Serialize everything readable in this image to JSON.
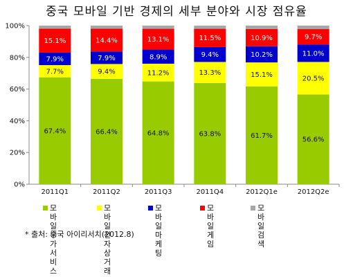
{
  "chart_data": {
    "type": "bar",
    "stacked": true,
    "title": "중국 모바일 기반 경제의 세부 분야와 시장 점유율",
    "categories": [
      "2011Q1",
      "2011Q2",
      "2011Q3",
      "2011Q4",
      "2012Q1e",
      "2012Q2e"
    ],
    "series": [
      {
        "name": "모바일 부가서비스",
        "color": "#99cc00",
        "values": [
          67.4,
          66.4,
          64.8,
          63.8,
          61.7,
          56.6
        ],
        "labels": [
          "67.4%",
          "66.4%",
          "64.8%",
          "63.8%",
          "61.7%",
          "56.6%"
        ]
      },
      {
        "name": "모바일 전자상거래",
        "color": "#ffff00",
        "values": [
          7.7,
          9.4,
          11.2,
          13.3,
          15.1,
          20.5
        ],
        "labels": [
          "7.7%",
          "9.4%",
          "11.2%",
          "13.3%",
          "15.1%",
          "20.5%"
        ]
      },
      {
        "name": "모바일 마케팅",
        "color": "#0000cc",
        "values": [
          7.9,
          7.9,
          8.9,
          9.4,
          10.2,
          11.0
        ],
        "labels": [
          "7.9%",
          "7.9%",
          "8.9%",
          "9.4%",
          "10.2%",
          "11.0%"
        ]
      },
      {
        "name": "모바일 게임",
        "color": "#ff0000",
        "values": [
          15.1,
          14.4,
          13.1,
          11.5,
          10.9,
          9.7
        ],
        "labels": [
          "15.1%",
          "14.4%",
          "13.1%",
          "11.5%",
          "10.9%",
          "9.7%"
        ]
      },
      {
        "name": "모바일 검색",
        "color": "#a6a6a6",
        "values": [
          1.9,
          1.9,
          2.0,
          2.0,
          2.1,
          2.2
        ],
        "labels": []
      }
    ],
    "ylim": [
      0,
      100
    ],
    "yticks": [
      "0%",
      "20%",
      "40%",
      "60%",
      "80%",
      "100%"
    ],
    "grid": false,
    "legend_position": "bottom"
  },
  "legend_items": [
    {
      "text": "모바일\n부가서비스",
      "color": "#99cc00"
    },
    {
      "text": "모바일\n전자상거래",
      "color": "#ffff00"
    },
    {
      "text": "모바일\n마케팅",
      "color": "#0000cc"
    },
    {
      "text": "모바일\n게임",
      "color": "#ff0000"
    },
    {
      "text": "모바일 검색",
      "color": "#a6a6a6"
    }
  ],
  "source_note": "* 출처: 중국 아이리서치(2012.8)"
}
